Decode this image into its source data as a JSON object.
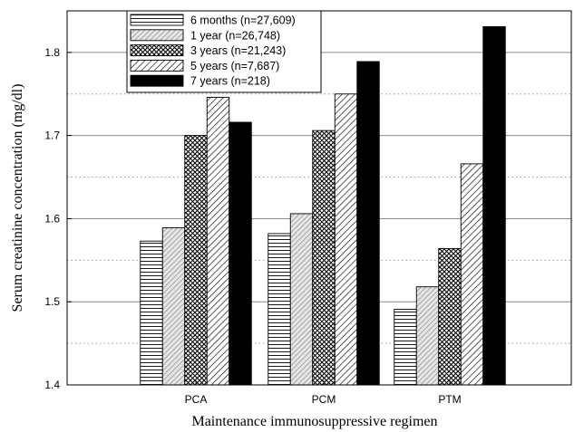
{
  "chart_data": {
    "type": "bar",
    "categories": [
      "PCA",
      "PCM",
      "PTM"
    ],
    "series": [
      {
        "name": "6 months (n=27,609)",
        "values": [
          1.573,
          1.582,
          1.491
        ],
        "pattern": "horizontal"
      },
      {
        "name": "1 year (n=26,748)",
        "values": [
          1.589,
          1.606,
          1.518
        ],
        "pattern": "diag-gray"
      },
      {
        "name": "3 years (n=21,243)",
        "values": [
          1.7,
          1.706,
          1.564
        ],
        "pattern": "crosshatch"
      },
      {
        "name": "5 years (n=7,687)",
        "values": [
          1.746,
          1.75,
          1.666
        ],
        "pattern": "diag-wide"
      },
      {
        "name": "7 years (n=218)",
        "values": [
          1.716,
          1.789,
          1.831
        ],
        "pattern": "solid"
      }
    ],
    "xlabel": "Maintenance immunosuppressive regimen",
    "ylabel": "Serum creatinine concentration (mg/dl)",
    "ylim": [
      1.4,
      1.85
    ],
    "yticks": [
      "1.4",
      "1.5",
      "1.6",
      "1.7",
      "1.8"
    ],
    "grid": {
      "major": "solid",
      "minor": "dotted"
    },
    "legend_position": "top-left"
  }
}
